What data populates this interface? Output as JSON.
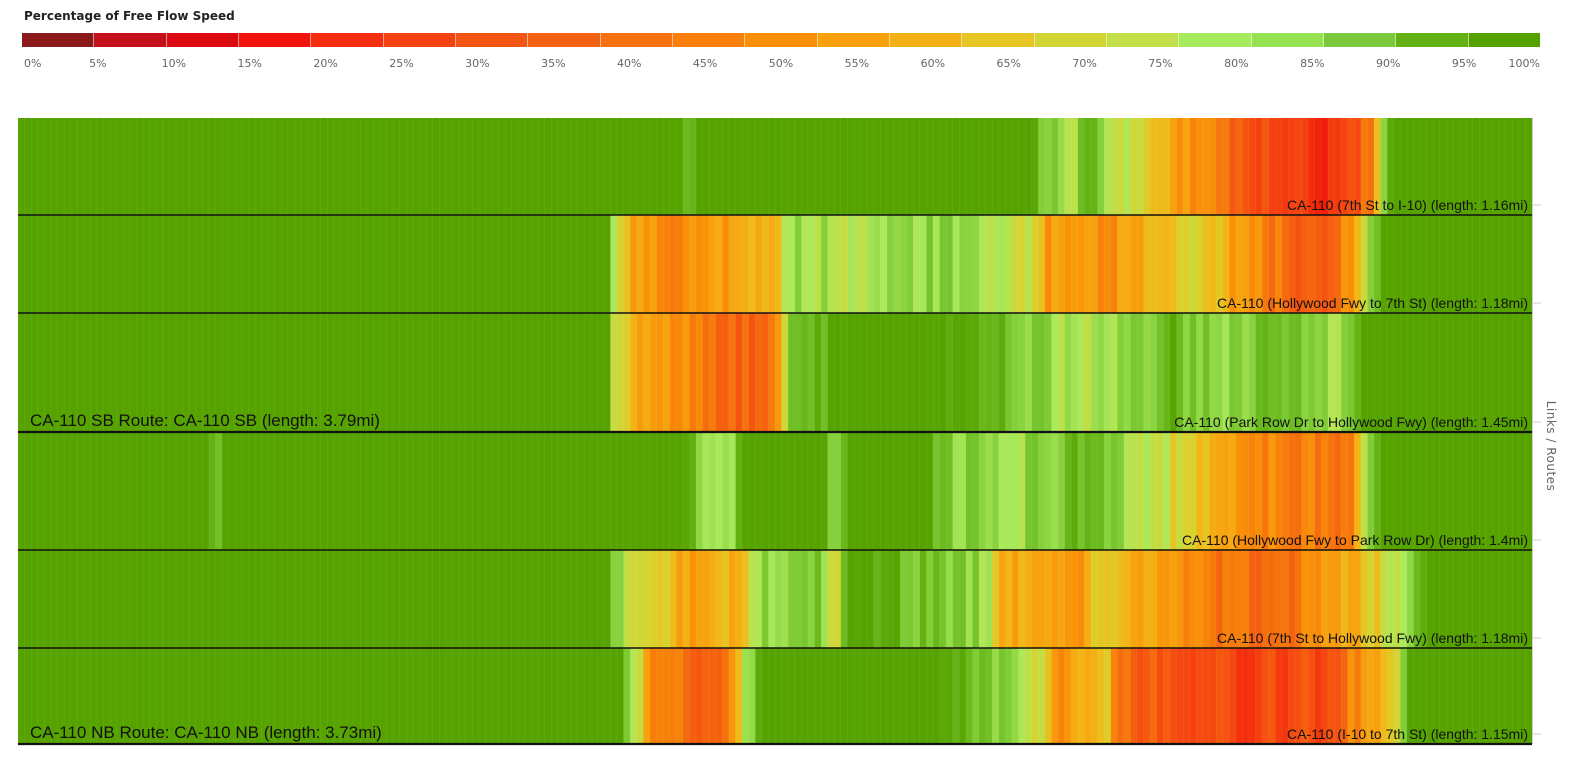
{
  "legend": {
    "title": "Percentage of Free Flow Speed",
    "colors": [
      "#8b1a1a",
      "#c3111c",
      "#db0a10",
      "#f0140c",
      "#f52e10",
      "#f54212",
      "#f35512",
      "#f36212",
      "#f47010",
      "#f77f0a",
      "#f98f06",
      "#f9a00a",
      "#f3b014",
      "#e7c525",
      "#d3d534",
      "#c0df48",
      "#a6ea5e",
      "#94e152",
      "#7cc93b",
      "#63b214",
      "#56a300"
    ],
    "ticks": [
      "0%",
      "5%",
      "10%",
      "15%",
      "20%",
      "25%",
      "30%",
      "35%",
      "40%",
      "45%",
      "50%",
      "55%",
      "60%",
      "65%",
      "70%",
      "75%",
      "80%",
      "85%",
      "90%",
      "95%",
      "100%"
    ]
  },
  "axis_title": "Links / Routes",
  "chart_data": {
    "type": "heatmap",
    "title": "Percentage of Free Flow Speed",
    "value_unit": "percent of free flow speed",
    "color_scale": [
      0,
      100
    ],
    "rows": [
      {
        "label": "CA-110 (7th St to I-10) (length: 1.16mi)",
        "keypoints": [
          [
            0,
            100
          ],
          [
            0.44,
            100
          ],
          [
            0.445,
            90
          ],
          [
            0.45,
            100
          ],
          [
            0.67,
            100
          ],
          [
            0.675,
            90
          ],
          [
            0.7,
            80
          ],
          [
            0.705,
            100
          ],
          [
            0.72,
            82
          ],
          [
            0.74,
            72
          ],
          [
            0.755,
            62
          ],
          [
            0.78,
            45
          ],
          [
            0.79,
            55
          ],
          [
            0.8,
            38
          ],
          [
            0.83,
            28
          ],
          [
            0.86,
            22
          ],
          [
            0.88,
            30
          ],
          [
            0.895,
            45
          ],
          [
            0.9,
            78
          ],
          [
            0.91,
            100
          ],
          [
            1.0,
            100
          ]
        ]
      },
      {
        "label": "CA-110 (Hollywood Fwy to 7th St) (length: 1.18mi)",
        "keypoints": [
          [
            0,
            100
          ],
          [
            0.39,
            100
          ],
          [
            0.395,
            75
          ],
          [
            0.41,
            52
          ],
          [
            0.44,
            48
          ],
          [
            0.47,
            55
          ],
          [
            0.5,
            58
          ],
          [
            0.51,
            82
          ],
          [
            0.54,
            80
          ],
          [
            0.58,
            82
          ],
          [
            0.6,
            85
          ],
          [
            0.64,
            80
          ],
          [
            0.67,
            72
          ],
          [
            0.68,
            52
          ],
          [
            0.72,
            50
          ],
          [
            0.75,
            62
          ],
          [
            0.78,
            72
          ],
          [
            0.8,
            55
          ],
          [
            0.84,
            40
          ],
          [
            0.87,
            35
          ],
          [
            0.89,
            72
          ],
          [
            0.9,
            100
          ],
          [
            1.0,
            100
          ]
        ]
      },
      {
        "label": "CA-110 (Park Row Dr to Hollywood Fwy) (length: 1.45mi)",
        "keypoints": [
          [
            0,
            100
          ],
          [
            0.39,
            100
          ],
          [
            0.395,
            70
          ],
          [
            0.41,
            58
          ],
          [
            0.44,
            48
          ],
          [
            0.47,
            40
          ],
          [
            0.49,
            35
          ],
          [
            0.5,
            40
          ],
          [
            0.51,
            92
          ],
          [
            0.55,
            100
          ],
          [
            0.6,
            100
          ],
          [
            0.64,
            95
          ],
          [
            0.67,
            88
          ],
          [
            0.7,
            78
          ],
          [
            0.73,
            82
          ],
          [
            0.76,
            95
          ],
          [
            0.79,
            85
          ],
          [
            0.83,
            92
          ],
          [
            0.87,
            80
          ],
          [
            0.88,
            88
          ],
          [
            0.89,
            100
          ],
          [
            1.0,
            100
          ]
        ]
      },
      {
        "label": "CA-110 (Hollywood Fwy to Park Row Dr) (length: 1.4mi)",
        "keypoints": [
          [
            0,
            100
          ],
          [
            0.125,
            100
          ],
          [
            0.13,
            92
          ],
          [
            0.135,
            100
          ],
          [
            0.44,
            100
          ],
          [
            0.45,
            85
          ],
          [
            0.47,
            82
          ],
          [
            0.48,
            100
          ],
          [
            0.53,
            100
          ],
          [
            0.54,
            85
          ],
          [
            0.55,
            100
          ],
          [
            0.6,
            100
          ],
          [
            0.62,
            85
          ],
          [
            0.66,
            82
          ],
          [
            0.7,
            92
          ],
          [
            0.73,
            85
          ],
          [
            0.77,
            68
          ],
          [
            0.8,
            55
          ],
          [
            0.84,
            45
          ],
          [
            0.88,
            45
          ],
          [
            0.89,
            80
          ],
          [
            0.9,
            100
          ],
          [
            1.0,
            100
          ]
        ]
      },
      {
        "label": "CA-110 (7th St to Hollywood Fwy) (length: 1.18mi)",
        "keypoints": [
          [
            0,
            100
          ],
          [
            0.39,
            100
          ],
          [
            0.395,
            82
          ],
          [
            0.42,
            72
          ],
          [
            0.44,
            55
          ],
          [
            0.48,
            62
          ],
          [
            0.49,
            85
          ],
          [
            0.53,
            88
          ],
          [
            0.54,
            72
          ],
          [
            0.55,
            100
          ],
          [
            0.6,
            90
          ],
          [
            0.64,
            82
          ],
          [
            0.645,
            62
          ],
          [
            0.67,
            55
          ],
          [
            0.7,
            48
          ],
          [
            0.71,
            72
          ],
          [
            0.74,
            58
          ],
          [
            0.77,
            48
          ],
          [
            0.8,
            40
          ],
          [
            0.84,
            42
          ],
          [
            0.89,
            62
          ],
          [
            0.92,
            88
          ],
          [
            0.93,
            100
          ],
          [
            1.0,
            100
          ]
        ]
      },
      {
        "label": "CA-110 (I-10 to 7th St) (length: 1.15mi)",
        "keypoints": [
          [
            0,
            100
          ],
          [
            0.4,
            100
          ],
          [
            0.405,
            82
          ],
          [
            0.42,
            48
          ],
          [
            0.45,
            38
          ],
          [
            0.47,
            45
          ],
          [
            0.48,
            78
          ],
          [
            0.49,
            100
          ],
          [
            0.6,
            100
          ],
          [
            0.64,
            90
          ],
          [
            0.67,
            78
          ],
          [
            0.69,
            50
          ],
          [
            0.72,
            70
          ],
          [
            0.725,
            42
          ],
          [
            0.77,
            32
          ],
          [
            0.82,
            30
          ],
          [
            0.86,
            32
          ],
          [
            0.88,
            45
          ],
          [
            0.91,
            68
          ],
          [
            0.92,
            100
          ],
          [
            1.0,
            100
          ]
        ]
      }
    ],
    "routes": [
      {
        "label": "CA-110 SB Route: CA-110 SB (length: 3.79mi)",
        "rows": [
          0,
          2
        ]
      },
      {
        "label": "CA-110 NB Route: CA-110 NB (length: 3.73mi)",
        "rows": [
          3,
          5
        ]
      }
    ]
  }
}
